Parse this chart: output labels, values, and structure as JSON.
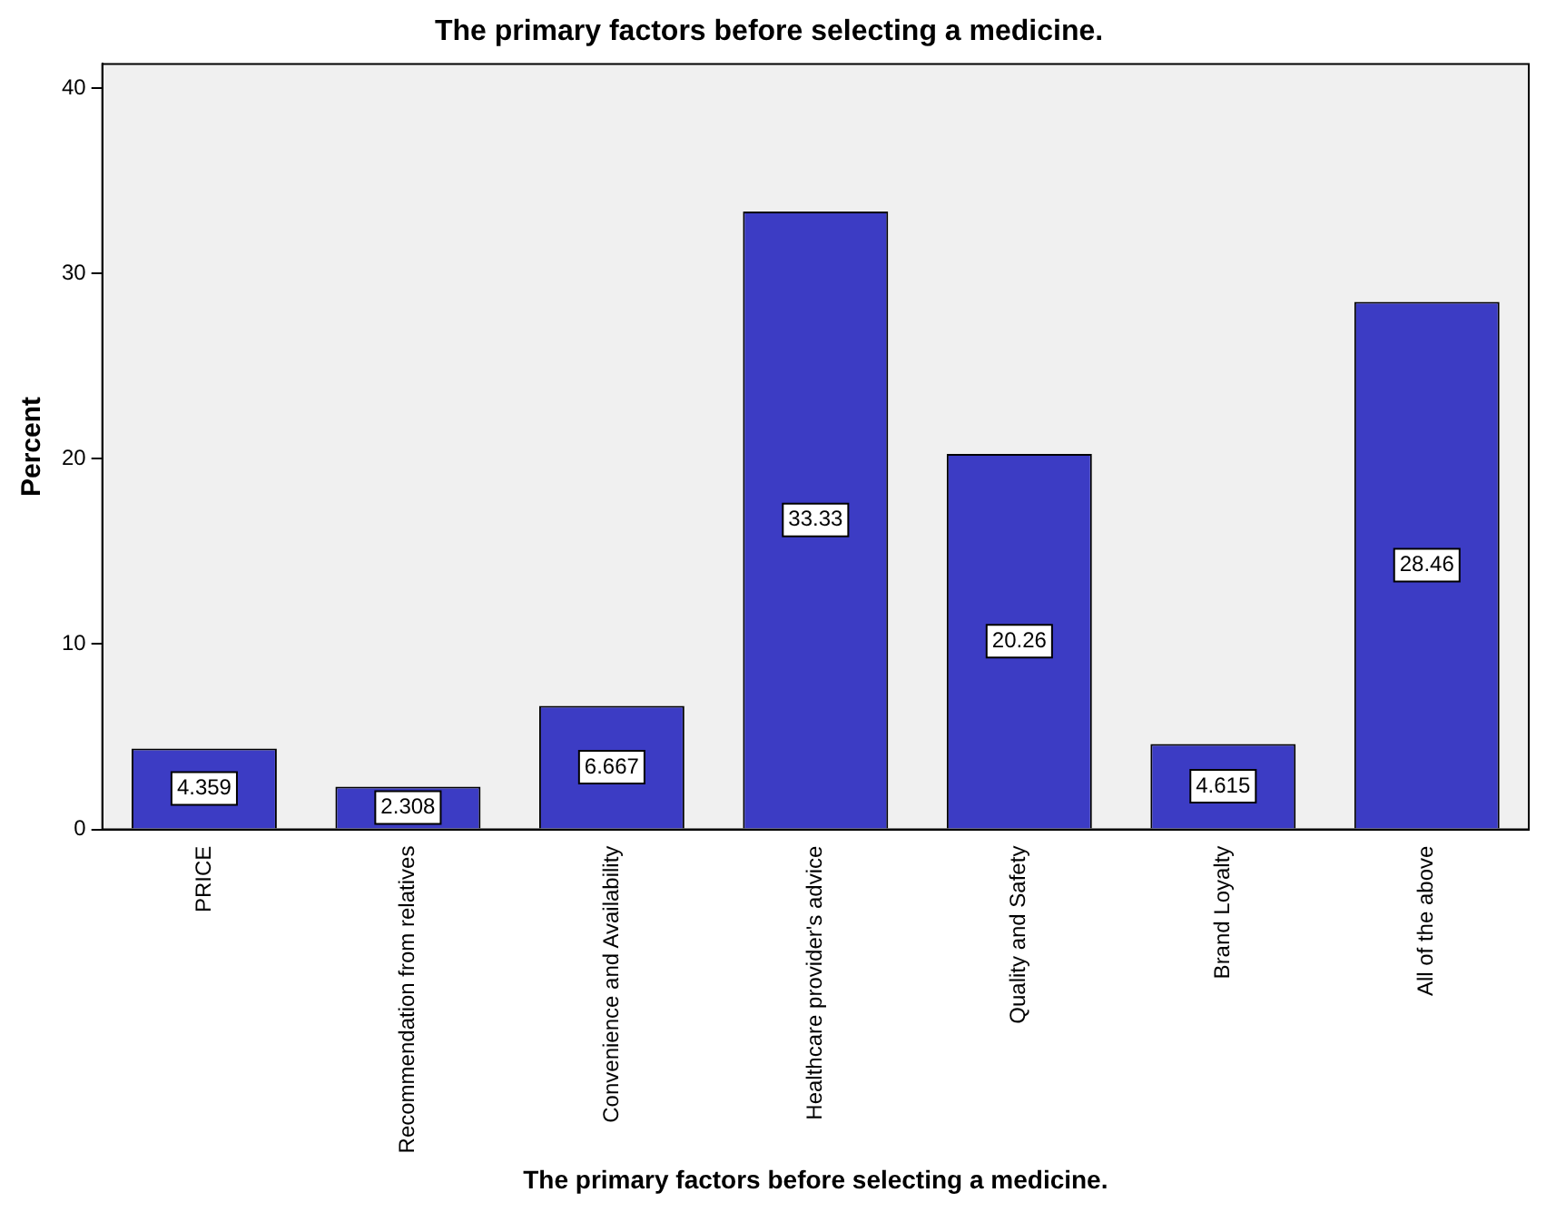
{
  "chart_data": {
    "type": "bar",
    "title": "The primary factors before selecting a medicine.",
    "xlabel": "The primary factors before selecting a medicine.",
    "ylabel": "Percent",
    "categories": [
      "PRICE",
      "Recommendation from relatives",
      "Convenience and Availability",
      "Healthcare provider's advice",
      "Quality and Safety",
      "Brand Loyalty",
      "All of the above"
    ],
    "values": [
      4.359,
      2.308,
      6.667,
      33.33,
      20.26,
      4.615,
      28.46
    ],
    "color": "#3c3cc4",
    "ylim": [
      0,
      41.3
    ],
    "yticks": [
      0,
      10,
      20,
      30,
      40
    ],
    "grid": false,
    "legend": false,
    "data_labels": true
  }
}
